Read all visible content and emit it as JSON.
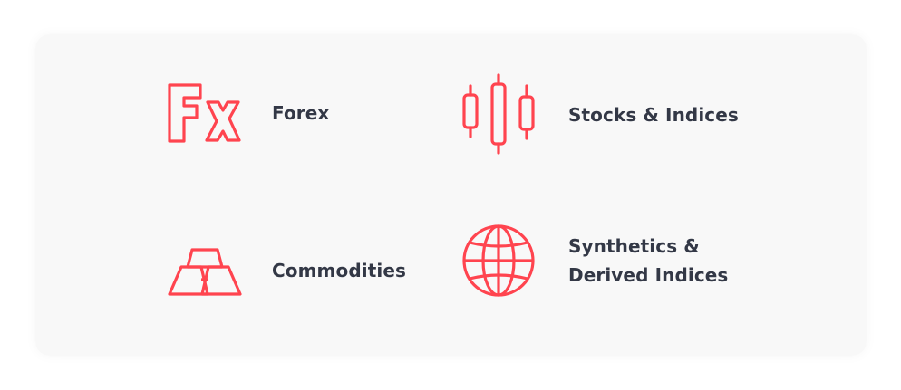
{
  "accent_color": "#ff444f",
  "text_color": "#333846",
  "markets": {
    "forex": {
      "label": "Forex",
      "icon": "fx-icon"
    },
    "stocks": {
      "label": "Stocks & Indices",
      "icon": "candlestick-chart-icon"
    },
    "commodities": {
      "label": "Commodities",
      "icon": "gold-bars-icon"
    },
    "synthetics": {
      "label_line1": "Synthetics &",
      "label_line2": "Derived Indices",
      "icon": "globe-icon"
    }
  }
}
